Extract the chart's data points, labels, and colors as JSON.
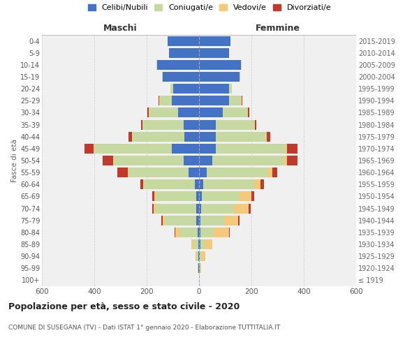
{
  "age_groups": [
    "100+",
    "95-99",
    "90-94",
    "85-89",
    "80-84",
    "75-79",
    "70-74",
    "65-69",
    "60-64",
    "55-59",
    "50-54",
    "45-49",
    "40-44",
    "35-39",
    "30-34",
    "25-29",
    "20-24",
    "15-19",
    "10-14",
    "5-9",
    "0-4"
  ],
  "birth_years": [
    "≤ 1919",
    "1920-1924",
    "1925-1929",
    "1930-1934",
    "1935-1939",
    "1940-1944",
    "1945-1949",
    "1950-1954",
    "1955-1959",
    "1960-1964",
    "1965-1969",
    "1970-1974",
    "1975-1979",
    "1980-1984",
    "1985-1989",
    "1990-1994",
    "1995-1999",
    "2000-2004",
    "2005-2009",
    "2010-2014",
    "2015-2019"
  ],
  "maschi": {
    "celibi": [
      0,
      2,
      3,
      4,
      5,
      10,
      10,
      10,
      15,
      40,
      60,
      105,
      55,
      60,
      80,
      105,
      100,
      140,
      160,
      115,
      120
    ],
    "coniugati": [
      0,
      3,
      8,
      18,
      70,
      120,
      155,
      155,
      195,
      230,
      265,
      295,
      200,
      155,
      110,
      45,
      10,
      2,
      2,
      0,
      0
    ],
    "vedovi": [
      0,
      0,
      3,
      8,
      15,
      10,
      8,
      5,
      3,
      2,
      2,
      2,
      2,
      2,
      2,
      2,
      0,
      0,
      0,
      0,
      0
    ],
    "divorziati": [
      0,
      0,
      0,
      0,
      3,
      5,
      5,
      8,
      12,
      40,
      40,
      35,
      12,
      5,
      5,
      2,
      0,
      0,
      0,
      0,
      0
    ]
  },
  "femmine": {
    "nubili": [
      0,
      2,
      3,
      5,
      5,
      5,
      8,
      10,
      15,
      30,
      50,
      65,
      65,
      65,
      90,
      115,
      115,
      155,
      160,
      115,
      120
    ],
    "coniugate": [
      0,
      3,
      8,
      15,
      50,
      90,
      125,
      145,
      195,
      235,
      275,
      265,
      190,
      145,
      95,
      45,
      10,
      2,
      2,
      0,
      0
    ],
    "vedove": [
      0,
      2,
      12,
      30,
      60,
      55,
      55,
      45,
      25,
      15,
      10,
      5,
      3,
      3,
      2,
      2,
      0,
      0,
      0,
      0,
      0
    ],
    "divorziate": [
      0,
      0,
      0,
      0,
      2,
      5,
      8,
      10,
      12,
      18,
      40,
      40,
      15,
      5,
      5,
      2,
      0,
      0,
      0,
      0,
      0
    ]
  },
  "colors": {
    "celibi_nubili": "#4472C4",
    "coniugati": "#c5d9a0",
    "vedovi": "#f5c97a",
    "divorziati": "#c0392b"
  },
  "xlim": 600,
  "title": "Popolazione per età, sesso e stato civile - 2020",
  "subtitle": "COMUNE DI SUSEGANA (TV) - Dati ISTAT 1° gennaio 2020 - Elaborazione TUTTITALIA.IT",
  "ylabel_left": "Fasce di età",
  "maschi_label": "Maschi",
  "femmine_label": "Femmine",
  "legend_labels": [
    "Celibi/Nubili",
    "Coniugati/e",
    "Vedovi/e",
    "Divorziati/e"
  ],
  "background_color": "#ffffff",
  "grid_color": "#cccccc"
}
